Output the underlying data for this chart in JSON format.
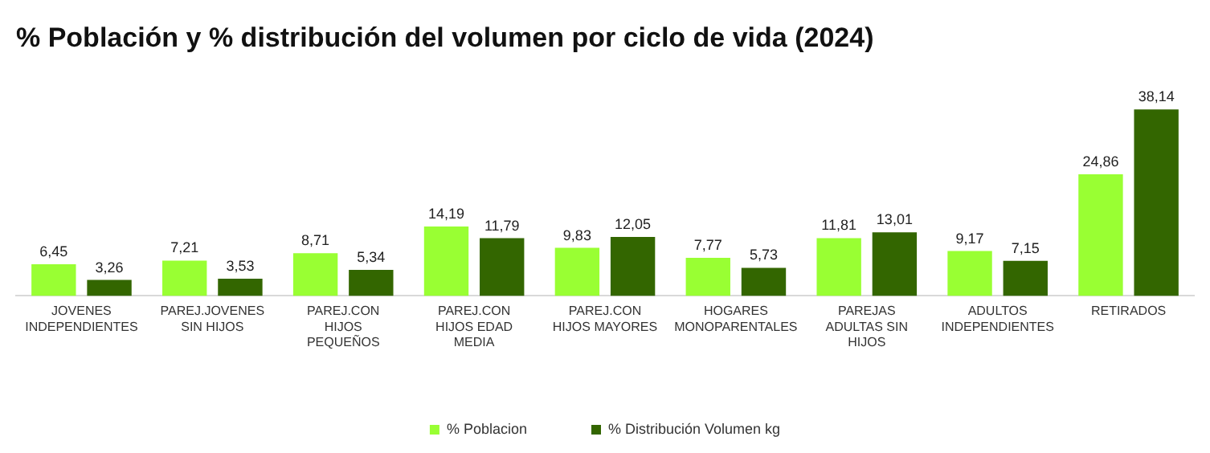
{
  "chart_data": {
    "type": "bar",
    "title": "% Población y % distribución del volumen por ciclo de vida (2024)",
    "categories": [
      "JOVENES INDEPENDIENTES",
      "PAREJ.JOVENES SIN HIJOS",
      "PAREJ.CON HIJOS PEQUEÑOS",
      "PAREJ.CON HIJOS EDAD MEDIA",
      "PAREJ.CON HIJOS MAYORES",
      "HOGARES MONOPARENTALES",
      "PAREJAS ADULTAS SIN HIJOS",
      "ADULTOS INDEPENDIENTES",
      "RETIRADOS"
    ],
    "series": [
      {
        "name": "% Poblacion",
        "color": "#99ff33",
        "values": [
          6.45,
          7.21,
          8.71,
          14.19,
          9.83,
          7.77,
          11.81,
          9.17,
          24.86
        ],
        "value_labels": [
          "6,45",
          "7,21",
          "8,71",
          "14,19",
          "9,83",
          "7,77",
          "11,81",
          "9,17",
          "24,86"
        ]
      },
      {
        "name": "% Distribución Volumen kg",
        "color": "#336600",
        "values": [
          3.26,
          3.53,
          5.34,
          11.79,
          12.05,
          5.73,
          13.01,
          7.15,
          38.14
        ],
        "value_labels": [
          "3,26",
          "3,53",
          "5,34",
          "11,79",
          "12,05",
          "5,73",
          "13,01",
          "7,15",
          "38,14"
        ]
      }
    ],
    "legend": "bottom",
    "grid": false
  }
}
